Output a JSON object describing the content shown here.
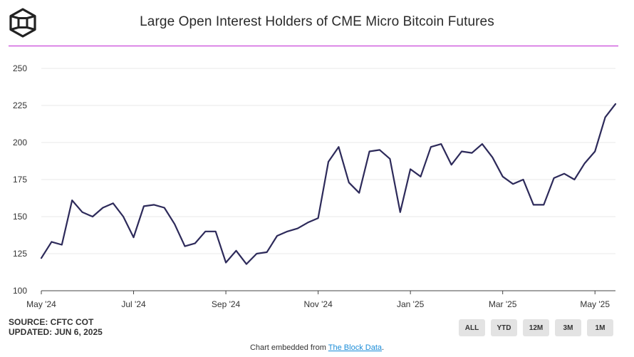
{
  "header": {
    "title": "Large Open Interest Holders of CME Micro Bitcoin Futures",
    "accent_color": "#c026d3"
  },
  "chart_data": {
    "type": "line",
    "title": "Large Open Interest Holders of CME Micro Bitcoin Futures",
    "xlabel": "",
    "ylabel": "",
    "ylim": [
      100,
      250
    ],
    "yticks": [
      100,
      125,
      150,
      175,
      200,
      225,
      250
    ],
    "x_tick_labels": [
      {
        "label": "May '24",
        "index": 0
      },
      {
        "label": "Jul '24",
        "index": 9
      },
      {
        "label": "Sep '24",
        "index": 18
      },
      {
        "label": "Nov '24",
        "index": 27
      },
      {
        "label": "Jan '25",
        "index": 36
      },
      {
        "label": "Mar '25",
        "index": 45
      },
      {
        "label": "May '25",
        "index": 54
      }
    ],
    "grid": true,
    "line_color": "#2d2a5a",
    "series": [
      {
        "name": "Large Open Interest Holders",
        "values": [
          122,
          133,
          131,
          161,
          153,
          150,
          156,
          159,
          150,
          136,
          157,
          158,
          156,
          145,
          130,
          132,
          140,
          140,
          119,
          127,
          118,
          125,
          126,
          137,
          140,
          142,
          146,
          149,
          187,
          197,
          173,
          166,
          194,
          195,
          189,
          153,
          182,
          177,
          197,
          199,
          185,
          194,
          193,
          199,
          190,
          177,
          172,
          175,
          158,
          158,
          176,
          179,
          175,
          186,
          194,
          217,
          226
        ]
      }
    ]
  },
  "source": {
    "line1": "SOURCE: CFTC COT",
    "line2": "UPDATED: JUN 6, 2025"
  },
  "range_buttons": [
    "ALL",
    "YTD",
    "12M",
    "3M",
    "1M"
  ],
  "footer": {
    "prefix": "Chart embedded from ",
    "link_text": "The Block Data",
    "suffix": "."
  }
}
